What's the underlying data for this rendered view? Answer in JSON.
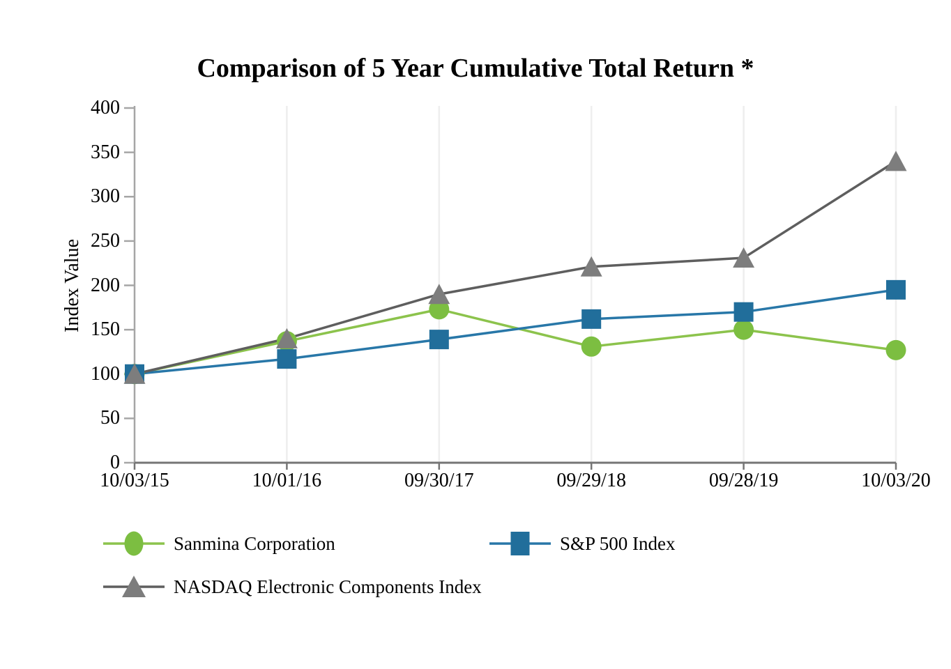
{
  "chart_data": {
    "type": "line",
    "title": "Comparison of 5 Year Cumulative Total Return *",
    "xlabel": "",
    "ylabel": "Index Value",
    "ylim": [
      0,
      400
    ],
    "y_ticks": [
      0,
      50,
      100,
      150,
      200,
      250,
      300,
      350,
      400
    ],
    "categories": [
      "10/03/15",
      "10/01/16",
      "09/30/17",
      "09/29/18",
      "09/28/19",
      "10/03/20"
    ],
    "series": [
      {
        "name": "Sanmina Corporation",
        "marker": "circle",
        "color": "#7CBE41",
        "line_color": "#8CC34C",
        "values": [
          100,
          137,
          173,
          131,
          150,
          127
        ]
      },
      {
        "name": "S&P 500 Index",
        "marker": "square",
        "color": "#216E9B",
        "line_color": "#2877A8",
        "values": [
          100,
          117,
          139,
          162,
          170,
          195
        ]
      },
      {
        "name": "NASDAQ Electronic Components Index",
        "marker": "triangle",
        "color": "#7D7D7D",
        "line_color": "#5E5E5E",
        "values": [
          100,
          140,
          190,
          221,
          231,
          340
        ]
      }
    ],
    "grid": "vertical-only",
    "legend_position": "below"
  },
  "axis": {
    "y_axis_color": "#A6A6A6",
    "x_axis_color": "#757575",
    "grid_color": "#EEEEEE",
    "text_color": "#000000"
  }
}
